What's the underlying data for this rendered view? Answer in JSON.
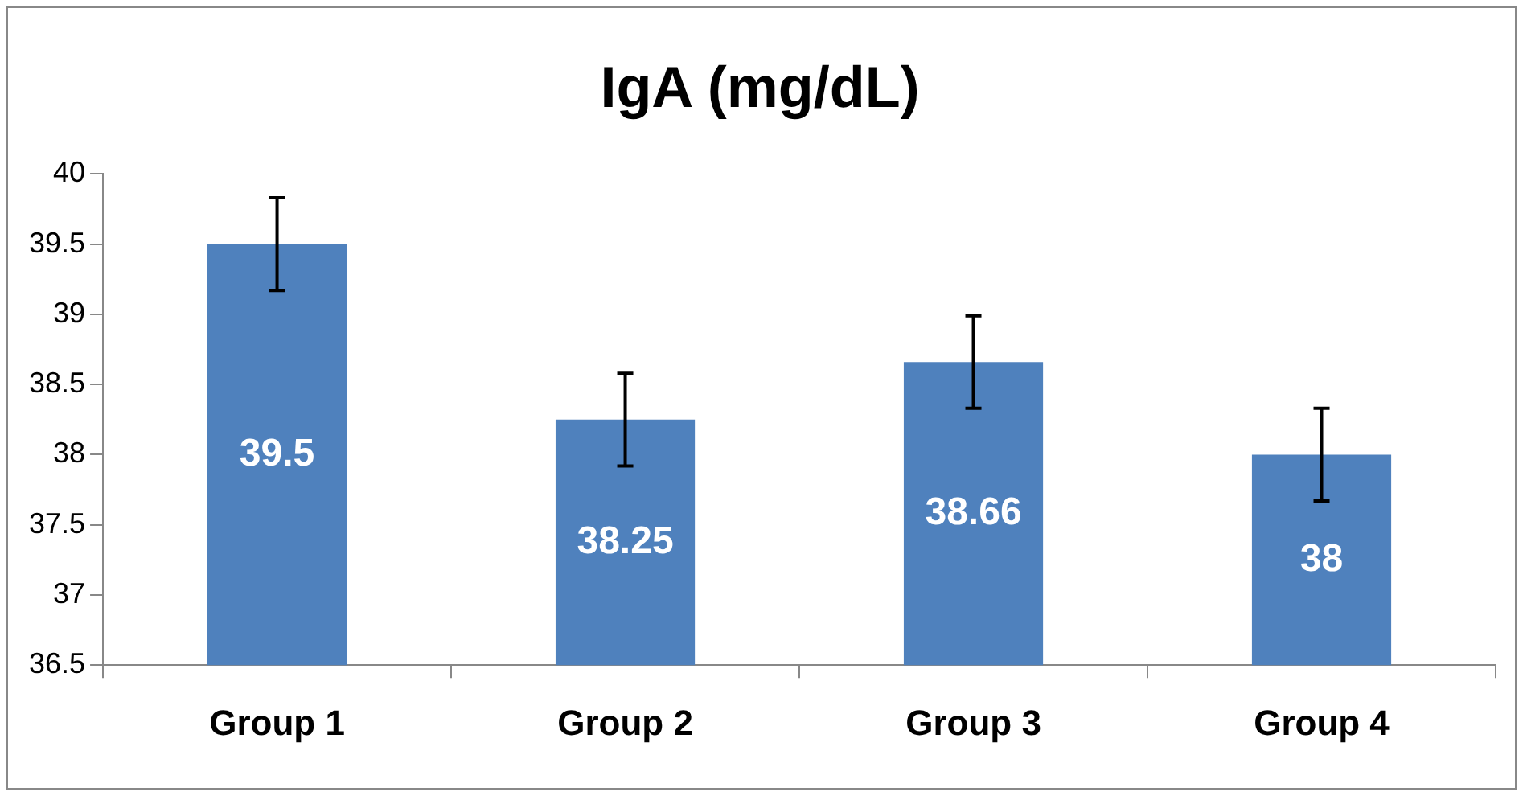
{
  "chart_data": {
    "type": "bar",
    "title": "IgA (mg/dL)",
    "categories": [
      "Group 1",
      "Group 2",
      "Group 3",
      "Group 4"
    ],
    "values": [
      39.5,
      38.25,
      38.66,
      38
    ],
    "errors": [
      0.33,
      0.33,
      0.33,
      0.33
    ],
    "color": "#4f81bd",
    "ylim": [
      36.5,
      40
    ],
    "yticks": [
      36.5,
      37,
      37.5,
      38,
      38.5,
      39,
      39.5,
      40
    ],
    "grid": false,
    "legend": false,
    "data_labels": true
  }
}
